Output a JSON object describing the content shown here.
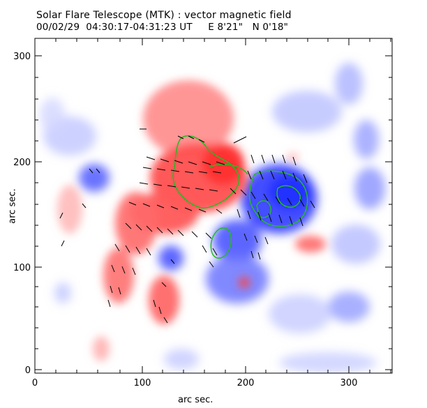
{
  "header": {
    "title": "Solar Flare Telescope (MTK) : vector magnetic field",
    "subtitle": "00/02/29  04:30:17-04:31:23 UT     E 8'21\"   N 0'18\""
  },
  "chart_data": {
    "type": "heatmap",
    "description_type": "vector magnetogram",
    "xlabel": "arc sec.",
    "ylabel": "arc sec.",
    "xlim": [
      0,
      340
    ],
    "ylim": [
      0,
      325
    ],
    "xticks": [
      "0",
      "100",
      "200",
      "300"
    ],
    "yticks": [
      "0",
      "100",
      "200",
      "300"
    ],
    "grid": false,
    "colors": {
      "positive": "#ff4040",
      "negative": "#3a4cff",
      "contour": "#22bb22",
      "vector": "#000000"
    }
  }
}
